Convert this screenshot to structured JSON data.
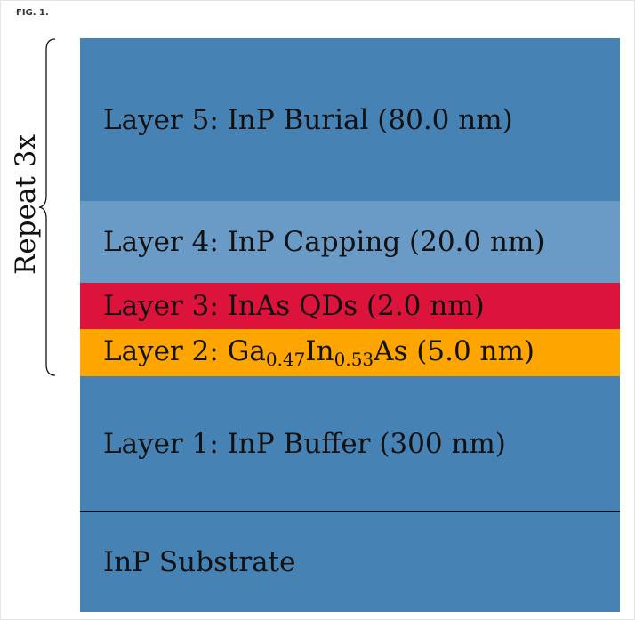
{
  "figure_label": "FIG. 1.",
  "repeat_label": "Repeat 3x",
  "layers": [
    {
      "label": "Layer 5: InP Burial (80.0 nm)"
    },
    {
      "label": "Layer 4: InP Capping (20.0 nm)"
    },
    {
      "label": "Layer 3: InAs QDs (2.0 nm)"
    },
    {
      "label_parts": [
        "Layer 2: Ga",
        "0.47",
        "In",
        "0.53",
        "As (5.0 nm)"
      ]
    },
    {
      "label": "Layer 1: InP Buffer (300 nm)"
    },
    {
      "label": "InP Substrate"
    }
  ]
}
